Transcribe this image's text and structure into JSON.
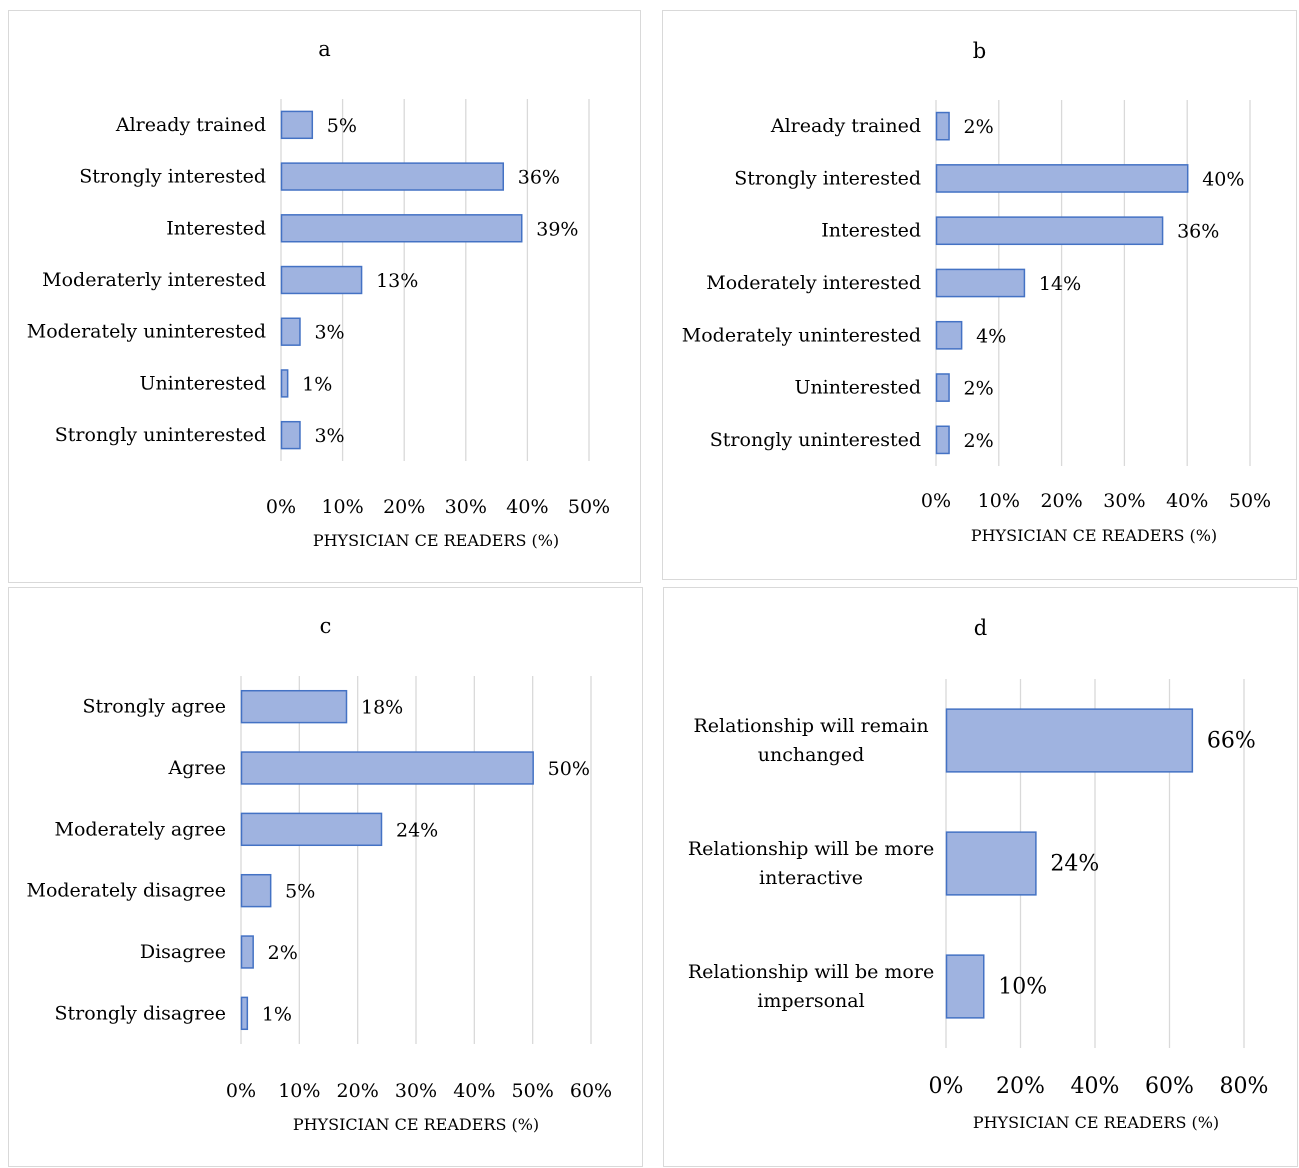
{
  "chart_data": [
    {
      "id": "a",
      "type": "bar",
      "orientation": "horizontal",
      "title": "a",
      "xlabel": "PHYSICIAN CE READERS (%)",
      "categories": [
        "Already trained",
        "Strongly interested",
        "Interested",
        "Moderaterly interested",
        "Moderately uninterested",
        "Uninterested",
        "Strongly uninterested"
      ],
      "values": [
        5,
        36,
        39,
        13,
        3,
        1,
        3
      ],
      "value_labels": [
        "5%",
        "36%",
        "39%",
        "13%",
        "3%",
        "1%",
        "3%"
      ],
      "xlim": [
        0,
        50
      ],
      "xticks": [
        "0%",
        "10%",
        "20%",
        "30%",
        "40%",
        "50%"
      ],
      "grid": true,
      "bar_color": "#9fb3e0",
      "bar_edge": "#4472c4"
    },
    {
      "id": "b",
      "type": "bar",
      "orientation": "horizontal",
      "title": "b",
      "xlabel": "PHYSICIAN CE READERS (%)",
      "categories": [
        "Already trained",
        "Strongly interested",
        "Interested",
        "Moderately interested",
        "Moderately uninterested",
        "Uninterested",
        "Strongly uninterested"
      ],
      "values": [
        2,
        40,
        36,
        14,
        4,
        2,
        2
      ],
      "value_labels": [
        "2%",
        "40%",
        "36%",
        "14%",
        "4%",
        "2%",
        "2%"
      ],
      "xlim": [
        0,
        50
      ],
      "xticks": [
        "0%",
        "10%",
        "20%",
        "30%",
        "40%",
        "50%"
      ],
      "grid": true,
      "bar_color": "#9fb3e0",
      "bar_edge": "#4472c4"
    },
    {
      "id": "c",
      "type": "bar",
      "orientation": "horizontal",
      "title": "c",
      "xlabel": "PHYSICIAN CE READERS (%)",
      "categories": [
        "Strongly agree",
        "Agree",
        "Moderately agree",
        "Moderately disagree",
        "Disagree",
        "Strongly disagree"
      ],
      "values": [
        18,
        50,
        24,
        5,
        2,
        1
      ],
      "value_labels": [
        "18%",
        "50%",
        "24%",
        "5%",
        "2%",
        "1%"
      ],
      "xlim": [
        0,
        60
      ],
      "xticks": [
        "0%",
        "10%",
        "20%",
        "30%",
        "40%",
        "50%",
        "60%"
      ],
      "grid": true,
      "bar_color": "#9fb3e0",
      "bar_edge": "#4472c4"
    },
    {
      "id": "d",
      "type": "bar",
      "orientation": "horizontal",
      "title": "d",
      "xlabel": "PHYSICIAN CE READERS (%)",
      "categories": [
        [
          "Relationship will remain",
          "unchanged"
        ],
        [
          "Relationship will be more",
          "interactive"
        ],
        [
          "Relationship will be more",
          "impersonal"
        ]
      ],
      "values": [
        66,
        24,
        10
      ],
      "value_labels": [
        "66%",
        "24%",
        "10%"
      ],
      "xlim": [
        0,
        80
      ],
      "xticks": [
        "0%",
        "20%",
        "40%",
        "60%",
        "80%"
      ],
      "grid": true,
      "bar_color": "#9fb3e0",
      "bar_edge": "#4472c4"
    }
  ]
}
